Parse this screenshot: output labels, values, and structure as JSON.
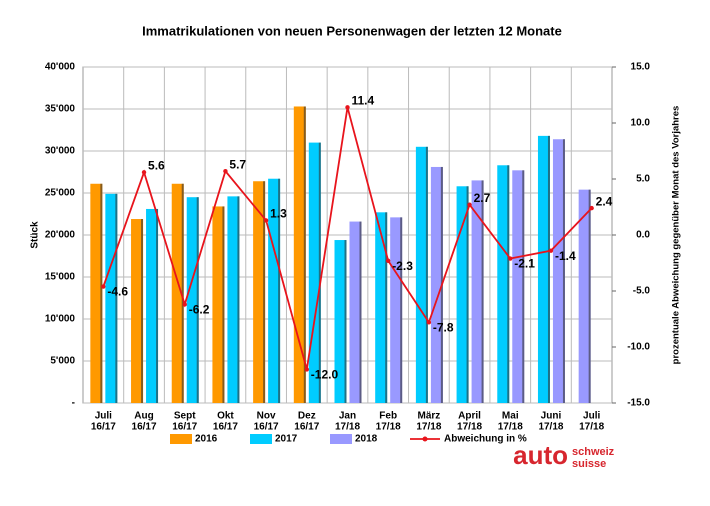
{
  "chart_data": {
    "type": "bar_line",
    "title": "Immatrikulationen von neuen Personenwagen der letzten 12 Monate",
    "y_label": "Stück",
    "y2_label": "prozentuale Abweichung gegenüber Monat des Vorjahres",
    "categories": [
      [
        "Juli",
        "16/17"
      ],
      [
        "Aug",
        "16/17"
      ],
      [
        "Sept",
        "16/17"
      ],
      [
        "Okt",
        "16/17"
      ],
      [
        "Nov",
        "16/17"
      ],
      [
        "Dez",
        "16/17"
      ],
      [
        "Jan",
        "17/18"
      ],
      [
        "Feb",
        "17/18"
      ],
      [
        "März",
        "17/18"
      ],
      [
        "April",
        "17/18"
      ],
      [
        "Mai",
        "17/18"
      ],
      [
        "Juni",
        "17/18"
      ],
      [
        "Juli",
        "17/18"
      ]
    ],
    "series": [
      {
        "name": "2016",
        "color": "#ff9900",
        "values": [
          26100,
          21900,
          26100,
          23400,
          26400,
          35300,
          null,
          null,
          null,
          null,
          null,
          null,
          null
        ]
      },
      {
        "name": "2017",
        "color": "#00ccff",
        "values": [
          24900,
          23100,
          24500,
          24600,
          26700,
          31000,
          19400,
          22700,
          30500,
          25800,
          28300,
          31800,
          null
        ]
      },
      {
        "name": "2018",
        "color": "#9999ff",
        "values": [
          null,
          null,
          null,
          null,
          null,
          null,
          21600,
          22100,
          28100,
          26500,
          27700,
          31400,
          25400
        ]
      },
      {
        "name": "Abweichung in %",
        "color": "#e8141c",
        "axis": "y2",
        "type": "line",
        "values": [
          -4.6,
          5.6,
          -6.2,
          5.7,
          1.3,
          -12.0,
          11.4,
          -2.3,
          -7.8,
          2.7,
          -2.1,
          -1.4,
          2.4
        ],
        "value_labels": [
          "-4.6",
          "5.6",
          "-6.2",
          "5.7",
          "1.3",
          "-12.0",
          "11.4",
          "-2.3",
          "-7.8",
          "2.7",
          "-2.1",
          "-1.4",
          "2.4"
        ]
      }
    ],
    "ylim": [
      0,
      40000
    ],
    "yticks": [
      {
        "value": 0,
        "label": "-"
      },
      {
        "value": 5000,
        "label": "5'000"
      },
      {
        "value": 10000,
        "label": "10'000"
      },
      {
        "value": 15000,
        "label": "15'000"
      },
      {
        "value": 20000,
        "label": "20'000"
      },
      {
        "value": 25000,
        "label": "25'000"
      },
      {
        "value": 30000,
        "label": "30'000"
      },
      {
        "value": 35000,
        "label": "35'000"
      },
      {
        "value": 40000,
        "label": "40'000"
      }
    ],
    "y2lim": [
      -15,
      15
    ],
    "y2ticks": [
      {
        "value": -15,
        "label": "-15.0"
      },
      {
        "value": -10,
        "label": "-10.0"
      },
      {
        "value": -5,
        "label": "-5.0"
      },
      {
        "value": 0,
        "label": "0.0"
      },
      {
        "value": 5,
        "label": "5.0"
      },
      {
        "value": 10,
        "label": "10.0"
      },
      {
        "value": 15,
        "label": "15.0"
      }
    ],
    "grid": true
  },
  "logo": {
    "word": "auto",
    "line1": "schweiz",
    "line2": "suisse"
  }
}
